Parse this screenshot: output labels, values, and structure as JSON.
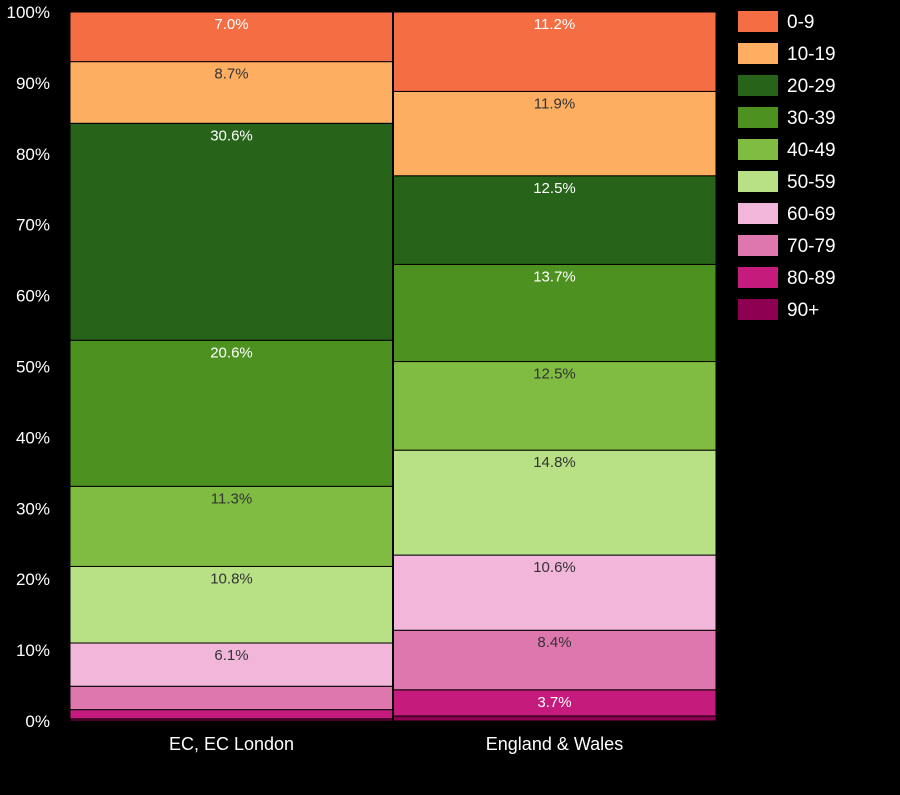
{
  "chart_data": {
    "type": "bar",
    "stacked": true,
    "normalized": true,
    "categories": [
      "EC, EC London",
      "England & Wales"
    ],
    "ylim": [
      0,
      100
    ],
    "y_ticks": [
      "0%",
      "10%",
      "20%",
      "30%",
      "40%",
      "50%",
      "60%",
      "70%",
      "80%",
      "90%",
      "100%"
    ],
    "legend_position": "right",
    "series": [
      {
        "name": "0-9",
        "color": "#f46d43",
        "values": [
          7.0,
          11.2
        ],
        "labels": [
          "7.0%",
          "11.2%"
        ]
      },
      {
        "name": "10-19",
        "color": "#fdae61",
        "values": [
          8.7,
          11.9
        ],
        "labels": [
          "8.7%",
          "11.9%"
        ]
      },
      {
        "name": "20-29",
        "color": "#276419",
        "values": [
          30.6,
          12.5
        ],
        "labels": [
          "30.6%",
          "12.5%"
        ]
      },
      {
        "name": "30-39",
        "color": "#4d9221",
        "values": [
          20.6,
          13.7
        ],
        "labels": [
          "20.6%",
          "13.7%"
        ]
      },
      {
        "name": "40-49",
        "color": "#7fbc41",
        "values": [
          11.3,
          12.5
        ],
        "labels": [
          "11.3%",
          "12.5%"
        ]
      },
      {
        "name": "50-59",
        "color": "#b8e186",
        "values": [
          10.8,
          14.8
        ],
        "labels": [
          "10.8%",
          "14.8%"
        ]
      },
      {
        "name": "60-69",
        "color": "#f1b6da",
        "values": [
          6.1,
          10.6
        ],
        "labels": [
          "6.1%",
          "10.6%"
        ]
      },
      {
        "name": "70-79",
        "color": "#de77ae",
        "values": [
          3.3,
          8.4
        ],
        "labels": [
          "",
          "8.4%"
        ]
      },
      {
        "name": "80-89",
        "color": "#c51b7d",
        "values": [
          1.3,
          3.7
        ],
        "labels": [
          "",
          "3.7%"
        ]
      },
      {
        "name": "90+",
        "color": "#8e0152",
        "values": [
          0.3,
          0.7
        ],
        "labels": [
          "",
          ""
        ]
      }
    ]
  }
}
